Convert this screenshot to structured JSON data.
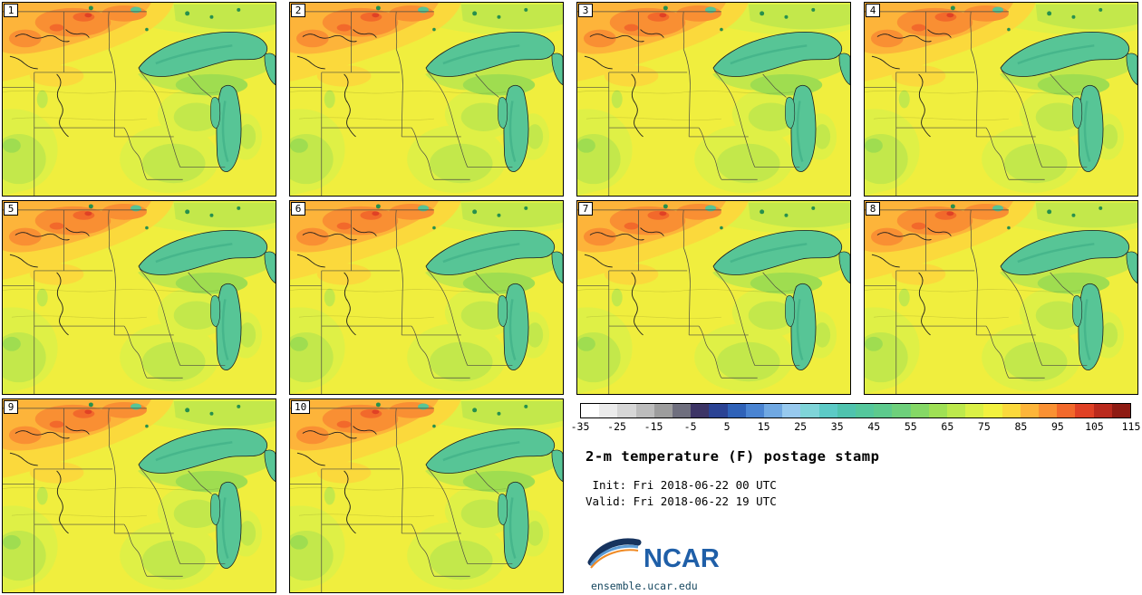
{
  "panels": [
    {
      "label": "1"
    },
    {
      "label": "2"
    },
    {
      "label": "3"
    },
    {
      "label": "4"
    },
    {
      "label": "5"
    },
    {
      "label": "6"
    },
    {
      "label": "7"
    },
    {
      "label": "8"
    },
    {
      "label": "9"
    },
    {
      "label": "10"
    }
  ],
  "colorbar": {
    "min": -35,
    "max": 115,
    "ticks": [
      -35,
      -25,
      -15,
      -5,
      5,
      15,
      25,
      35,
      45,
      55,
      65,
      75,
      85,
      95,
      105,
      115
    ],
    "segment_colors": [
      "#ffffff",
      "#ebebeb",
      "#d6d6d6",
      "#bcbcbc",
      "#9d9d9d",
      "#6f6f7e",
      "#3d3566",
      "#2b4394",
      "#2f62b8",
      "#4a84d2",
      "#70a8e2",
      "#97c9ee",
      "#7fd4d8",
      "#5ccac6",
      "#4fc3ae",
      "#54c79c",
      "#5dca8d",
      "#6ed07b",
      "#85d866",
      "#9fe055",
      "#bde94c",
      "#daf046",
      "#f2f13f",
      "#fbd93c",
      "#fdb53a",
      "#fa9133",
      "#f2692b",
      "#e04125",
      "#ba2a1d",
      "#8e1b13"
    ]
  },
  "info": {
    "title": "2-m temperature (F) postage stamp",
    "init": " Init: Fri 2018-06-22 00 UTC",
    "valid": "Valid: Fri 2018-06-22 19 UTC"
  },
  "logo": {
    "text": "NCAR",
    "site": "ensemble.ucar.edu"
  },
  "palette": {
    "base-yellow": "#f0ee3e",
    "yellow-green": "#dff046",
    "light-green": "#c3e84b",
    "green": "#9fdd50",
    "dark-green": "#27904d",
    "pale-orange": "#fbd93c",
    "orange": "#fdb43a",
    "deep-orange": "#f98f33",
    "red-orange": "#f2692b",
    "red": "#e04125",
    "lake-teal": "#57c596",
    "lake-shade": "#3dae85",
    "border-line": "#4a4a42",
    "river-line": "#1d1d1d",
    "ncar-blue": "#1f5fa8",
    "ncar-navy": "#16335e",
    "ncar-lightblue": "#5b9bd5",
    "ncar-orange": "#f08a24",
    "site-text": "#16475f"
  },
  "chart_data": {
    "type": "heatmap",
    "title": "2-m temperature (F) postage stamp",
    "variable": "2-m temperature",
    "units": "F",
    "init": "Fri 2018-06-22 00 UTC",
    "valid": "Fri 2018-06-22 19 UTC",
    "ensemble_members": [
      1,
      2,
      3,
      4,
      5,
      6,
      7,
      8,
      9,
      10
    ],
    "colorbar_ticks": [
      -35,
      -25,
      -15,
      -5,
      5,
      15,
      25,
      35,
      45,
      55,
      65,
      75,
      85,
      95,
      105,
      115
    ],
    "colorbar_range": [
      -35,
      115
    ],
    "legend_position": "bottom-right",
    "source_label": "ensemble.ucar.edu"
  }
}
